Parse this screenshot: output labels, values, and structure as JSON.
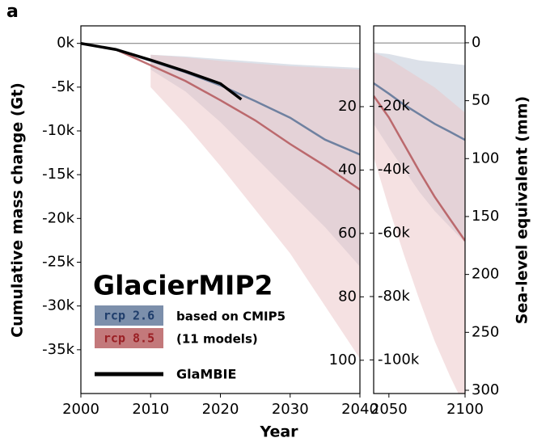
{
  "chart_data": [
    {
      "type": "line",
      "panel_label": "a",
      "ylabel": "Cumulative mass change (Gt)",
      "xlabel": "Year",
      "x": [
        2000,
        2005,
        2010,
        2015,
        2020,
        2025,
        2030,
        2035,
        2040
      ],
      "xlim": [
        2000,
        2040
      ],
      "xticks": [
        2000,
        2010,
        2020,
        2030,
        2040
      ],
      "ylim": [
        -40000,
        2000
      ],
      "yticks": [
        {
          "value": 0,
          "label": "0k"
        },
        {
          "value": -5000,
          "label": "-5k"
        },
        {
          "value": -10000,
          "label": "-10k"
        },
        {
          "value": -15000,
          "label": "-15k"
        },
        {
          "value": -20000,
          "label": "-20k"
        },
        {
          "value": -25000,
          "label": "-25k"
        },
        {
          "value": -30000,
          "label": "-30k"
        },
        {
          "value": -35000,
          "label": "-35k"
        }
      ],
      "y2lim": [
        110.5,
        -5.5
      ],
      "y2ticks": [
        20,
        40,
        60,
        80,
        100
      ],
      "legend": {
        "title": "GlacierMIP2",
        "note": [
          "based on CMIP5",
          "(11 models)"
        ]
      },
      "series": [
        {
          "name": "rcp 2.6",
          "color": "#5b7396",
          "label_color": "#1f3d6b",
          "values": [
            0,
            -700,
            -2000,
            -3300,
            -4800,
            -6600,
            -8500,
            -11000,
            -12700
          ],
          "band": {
            "color": "#b9c3d3",
            "low": [
              null,
              null,
              -3000,
              -5500,
              -9000,
              -13000,
              -17000,
              -21000,
              -25500
            ],
            "high": [
              null,
              -1200,
              -1300,
              -1500,
              -1800,
              -2100,
              -2400,
              -2600,
              -2800
            ]
          }
        },
        {
          "name": "rcp 8.5",
          "color": "#b4575a",
          "label_color": "#9a1f24",
          "values": [
            0,
            -700,
            -2500,
            -4300,
            -6500,
            -8800,
            -11500,
            -14000,
            -16700
          ],
          "band": {
            "color": "#ecc3c5",
            "low": [
              null,
              null,
              -5000,
              -9300,
              -14000,
              -19000,
              -24000,
              -30000,
              -36000
            ],
            "high": [
              null,
              -1200,
              -1300,
              -1600,
              -2000,
              -2300,
              -2600,
              -2800,
              -3000
            ]
          }
        },
        {
          "name": "GlaMBIE",
          "color": "#000000",
          "x": [
            2000,
            2005,
            2010,
            2015,
            2020,
            2023
          ],
          "values": [
            0,
            -700,
            -1900,
            -3200,
            -4600,
            -6400
          ]
        }
      ]
    },
    {
      "type": "line",
      "y2label": "Sea-level equivalent (mm)",
      "x": [
        2040,
        2050,
        2060,
        2070,
        2080,
        2090,
        2100
      ],
      "xlim": [
        2040,
        2100
      ],
      "xticks": [
        2050,
        2100
      ],
      "ylim": [
        -110600,
        5400
      ],
      "yticks": [
        {
          "value": -20000,
          "label": "-20k"
        },
        {
          "value": -40000,
          "label": "-40k"
        },
        {
          "value": -60000,
          "label": "-60k"
        },
        {
          "value": -80000,
          "label": "-80k"
        },
        {
          "value": -100000,
          "label": "-100k"
        }
      ],
      "y2lim": [
        302.8,
        -14.6
      ],
      "y2ticks": [
        0,
        50,
        100,
        150,
        200,
        250,
        300
      ],
      "series": [
        {
          "color": "#5b7396",
          "values": [
            -12700,
            -16000,
            -19500,
            -22500,
            -25500,
            -28000,
            -30600
          ],
          "band": {
            "color": "#b9c3d3",
            "low": [
              -25500,
              -33000,
              -40000,
              -47000,
              -53000,
              -58000,
              -63000
            ],
            "high": [
              -3000,
              -3500,
              -4500,
              -5500,
              -6000,
              -6500,
              -7000
            ]
          }
        },
        {
          "color": "#b4575a",
          "values": [
            -16700,
            -23500,
            -32000,
            -40500,
            -48500,
            -55500,
            -62400
          ],
          "band": {
            "color": "#ecc3c5",
            "low": [
              -36000,
              -52000,
              -67000,
              -81000,
              -94000,
              -105000,
              -115000
            ],
            "high": [
              -3000,
              -5000,
              -8000,
              -11000,
              -14000,
              -18000,
              -22000
            ]
          }
        }
      ]
    }
  ]
}
